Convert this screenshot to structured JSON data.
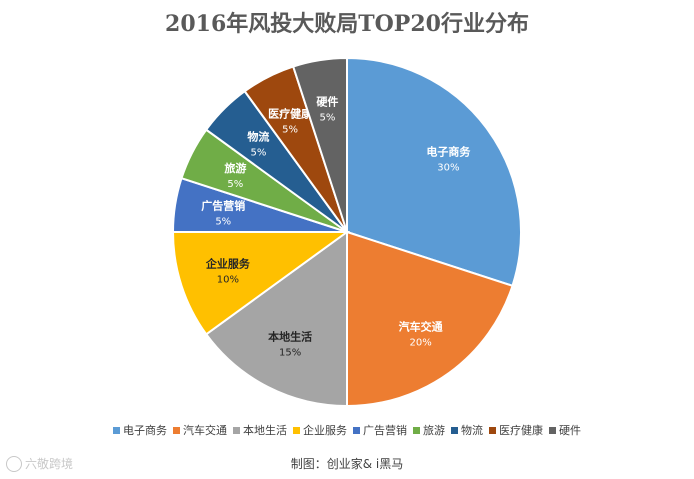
{
  "chart_data": {
    "type": "pie",
    "title": "2016年风投大败局TOP20行业分布",
    "categories": [
      "电子商务",
      "汽车交通",
      "本地生活",
      "企业服务",
      "广告营销",
      "旅游",
      "物流",
      "医疗健康",
      "硬件"
    ],
    "values": [
      30,
      20,
      15,
      10,
      5,
      5,
      5,
      5,
      5
    ],
    "value_labels": [
      "30%",
      "20%",
      "15%",
      "10%",
      "5%",
      "5%",
      "5%",
      "5%",
      "5%"
    ],
    "colors": [
      "#5B9BD5",
      "#ED7D31",
      "#A5A5A5",
      "#FFC000",
      "#4472C4",
      "#70AD47",
      "#255E91",
      "#9E480E",
      "#636363"
    ],
    "legend_position": "bottom"
  },
  "credit": "制图：创业家&  i黑马",
  "watermark": "六敬跨境"
}
